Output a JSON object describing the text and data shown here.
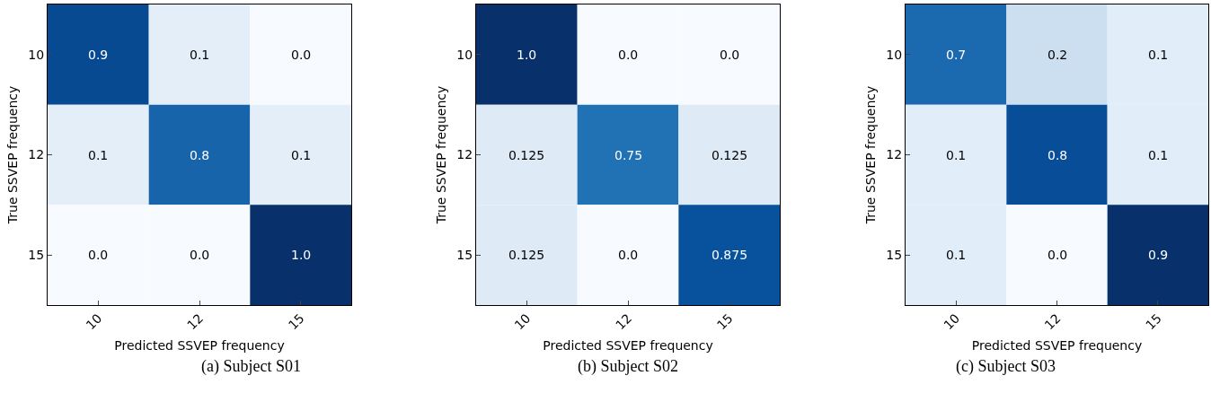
{
  "chart_data": [
    {
      "type": "heatmap",
      "title": "(a) Subject S01",
      "xlabel": "Predicted SSVEP frequency",
      "ylabel": "True SSVEP frequency",
      "categories": [
        "10",
        "12",
        "15"
      ],
      "y_categories": [
        "10",
        "12",
        "15"
      ],
      "grid": false,
      "cells": [
        [
          0.9,
          0.1,
          0.0
        ],
        [
          0.1,
          0.8,
          0.1
        ],
        [
          0.0,
          0.0,
          1.0
        ]
      ],
      "cell_labels": [
        [
          "0.9",
          "0.1",
          "0.0"
        ],
        [
          "0.1",
          "0.8",
          "0.1"
        ],
        [
          "0.0",
          "0.0",
          "1.0"
        ]
      ]
    },
    {
      "type": "heatmap",
      "title": "(b) Subject S02",
      "xlabel": "Predicted SSVEP frequency",
      "ylabel": "True SSVEP frequency",
      "categories": [
        "10",
        "12",
        "15"
      ],
      "y_categories": [
        "10",
        "12",
        "15"
      ],
      "grid": false,
      "cells": [
        [
          1.0,
          0.0,
          0.0
        ],
        [
          0.125,
          0.75,
          0.125
        ],
        [
          0.125,
          0.0,
          0.875
        ]
      ],
      "cell_labels": [
        [
          "1.0",
          "0.0",
          "0.0"
        ],
        [
          "0.125",
          "0.75",
          "0.125"
        ],
        [
          "0.125",
          "0.0",
          "0.875"
        ]
      ]
    },
    {
      "type": "heatmap",
      "title": "(c) Subject S03",
      "xlabel": "Predicted SSVEP frequency",
      "ylabel": "True SSVEP frequency",
      "categories": [
        "10",
        "12",
        "15"
      ],
      "y_categories": [
        "10",
        "12",
        "15"
      ],
      "grid": false,
      "cells": [
        [
          0.7,
          0.2,
          0.1
        ],
        [
          0.1,
          0.8,
          0.1
        ],
        [
          0.1,
          0.0,
          0.9
        ]
      ],
      "cell_labels": [
        [
          "0.7",
          "0.2",
          "0.1"
        ],
        [
          "0.1",
          "0.8",
          "0.1"
        ],
        [
          "0.1",
          "0.0",
          "0.9"
        ]
      ]
    }
  ]
}
